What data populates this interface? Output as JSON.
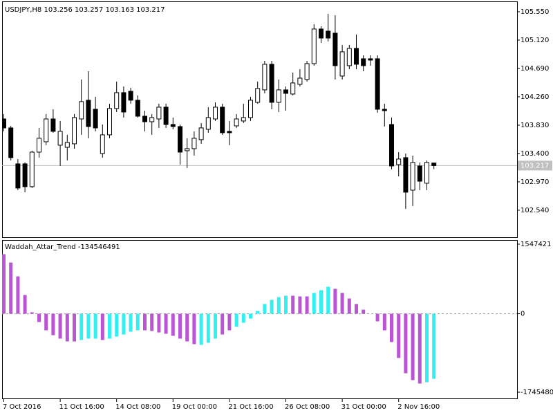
{
  "chart_data": [
    {
      "type": "candlestick",
      "title": "USDJPY,H8",
      "color": "#000000",
      "up_color": "#ffffff",
      "down_color": "#000000",
      "price_line_color": "#c0c0c0",
      "categories": [
        "7 Oct 2016",
        null,
        null,
        null,
        null,
        null,
        null,
        null,
        "11 Oct 16:00",
        null,
        null,
        null,
        null,
        null,
        null,
        null,
        "14 Oct 08:00",
        null,
        null,
        null,
        null,
        null,
        null,
        null,
        "19 Oct 00:00",
        null,
        null,
        null,
        null,
        null,
        null,
        null,
        "21 Oct 16:00",
        null,
        null,
        null,
        null,
        null,
        null,
        null,
        "26 Oct 08:00",
        null,
        null,
        null,
        null,
        null,
        null,
        null,
        "31 Oct 00:00",
        null,
        null,
        null,
        null,
        null,
        null,
        null,
        "2 Nov 16:00",
        null,
        null,
        null,
        null,
        null
      ],
      "open": [
        103.924,
        103.788,
        103.243,
        103.243,
        102.897,
        103.421,
        103.578,
        103.924,
        103.526,
        103.494,
        103.547,
        103.924,
        104.208,
        104.071,
        103.4,
        103.683,
        104.082,
        104.323,
        104.344,
        104.208,
        103.966,
        103.882,
        103.924,
        104.103,
        103.84,
        103.809,
        103.442,
        103.473,
        103.61,
        103.767,
        103.924,
        104.103,
        103.736,
        103.819,
        103.893,
        103.945,
        104.176,
        104.365,
        104.753,
        104.176,
        104.365,
        104.302,
        104.449,
        104.522,
        104.763,
        105.288,
        105.256,
        105.225,
        104.575,
        104.732,
        104.994,
        104.837,
        104.837,
        104.837,
        104.071,
        103.84,
        103.232,
        103.337,
        102.844,
        103.211,
        102.949,
        103.256
      ],
      "high": [
        103.998,
        103.819,
        103.316,
        103.264,
        103.442,
        103.788,
        103.998,
        104.071,
        103.893,
        103.683,
        103.998,
        104.522,
        104.648,
        104.26,
        103.84,
        104.155,
        104.491,
        104.417,
        104.396,
        104.281,
        104.05,
        103.998,
        104.155,
        104.155,
        103.945,
        103.84,
        103.631,
        103.736,
        103.861,
        104.103,
        104.176,
        104.155,
        103.893,
        103.998,
        104.155,
        104.26,
        104.491,
        104.805,
        104.805,
        104.522,
        104.417,
        104.627,
        104.679,
        104.805,
        105.361,
        105.33,
        105.519,
        105.498,
        105.047,
        105.047,
        105.204,
        104.889,
        104.889,
        104.889,
        104.155,
        103.945,
        103.421,
        103.4,
        103.368,
        103.264,
        103.295,
        103.257
      ],
      "low": [
        103.736,
        103.295,
        102.844,
        102.813,
        102.876,
        103.337,
        103.526,
        103.715,
        103.211,
        103.295,
        103.473,
        103.683,
        103.631,
        103.736,
        103.337,
        103.631,
        104.029,
        103.945,
        104.155,
        103.945,
        103.736,
        103.683,
        103.788,
        103.788,
        103.767,
        103.232,
        103.18,
        103.368,
        103.547,
        103.715,
        103.893,
        103.683,
        103.526,
        103.788,
        103.861,
        103.893,
        104.155,
        104.312,
        104.071,
        104.029,
        104.05,
        104.281,
        104.417,
        104.491,
        104.732,
        105.078,
        105.099,
        104.522,
        104.522,
        104.679,
        104.679,
        104.648,
        104.732,
        104.019,
        103.809,
        103.159,
        103.054,
        102.561,
        102.603,
        102.844,
        102.844,
        103.163
      ],
      "close": [
        103.788,
        103.337,
        102.876,
        102.897,
        103.421,
        103.631,
        103.924,
        103.736,
        103.736,
        103.568,
        103.945,
        104.187,
        103.809,
        103.788,
        103.683,
        104.082,
        104.323,
        104.029,
        104.208,
        103.966,
        103.882,
        103.945,
        104.103,
        103.84,
        103.809,
        103.421,
        103.473,
        103.631,
        103.788,
        103.945,
        104.103,
        103.715,
        103.715,
        103.924,
        103.945,
        104.208,
        104.386,
        104.753,
        104.176,
        104.365,
        104.312,
        104.47,
        104.543,
        104.763,
        105.288,
        105.151,
        105.151,
        104.732,
        104.942,
        104.994,
        104.753,
        104.732,
        104.816,
        104.071,
        104.05,
        103.211,
        103.316,
        102.813,
        103.264,
        102.98,
        103.264,
        103.217
      ],
      "ylim": [
        102.13,
        105.707
      ],
      "yticks": [
        {
          "value": 105.55,
          "label": "105.550"
        },
        {
          "value": 105.12,
          "label": "105.120"
        },
        {
          "value": 104.69,
          "label": "104.690"
        },
        {
          "value": 104.26,
          "label": "104.260"
        },
        {
          "value": 103.83,
          "label": "103.830"
        },
        {
          "value": 103.4,
          "label": "103.400"
        },
        {
          "value": 102.97,
          "label": "102.970"
        },
        {
          "value": 102.54,
          "label": "102.540"
        }
      ]
    },
    {
      "type": "bar",
      "title": "Waddah_Attar_Trend -134546491",
      "values": [
        1324000,
        1139000,
        831000,
        416000,
        31000,
        -185000,
        -369000,
        -477000,
        -554000,
        -616000,
        -616000,
        -585000,
        -554000,
        -554000,
        -585000,
        -554000,
        -508000,
        -462000,
        -400000,
        -369000,
        -369000,
        -385000,
        -416000,
        -446000,
        -492000,
        -554000,
        -616000,
        -677000,
        -693000,
        -646000,
        -554000,
        -462000,
        -369000,
        -292000,
        -200000,
        -108000,
        62000,
        215000,
        308000,
        369000,
        400000,
        400000,
        385000,
        385000,
        462000,
        523000,
        600000,
        554000,
        462000,
        339000,
        215000,
        92000,
        0,
        -169000,
        -369000,
        -631000,
        -985000,
        -1324000,
        -1477000,
        -1554000,
        -1524000,
        -1447000
      ],
      "colors": [
        "#ba55d3",
        "#ba55d3",
        "#ba55d3",
        "#ba55d3",
        "#ba55d3",
        "#ba55d3",
        "#ba55d3",
        "#ba55d3",
        "#ba55d3",
        "#ba55d3",
        "#ba55d3",
        "#33f0f0",
        "#33f0f0",
        "#33f0f0",
        "#ba55d3",
        "#33f0f0",
        "#33f0f0",
        "#33f0f0",
        "#33f0f0",
        "#33f0f0",
        "#ba55d3",
        "#ba55d3",
        "#ba55d3",
        "#ba55d3",
        "#ba55d3",
        "#ba55d3",
        "#ba55d3",
        "#ba55d3",
        "#33f0f0",
        "#33f0f0",
        "#33f0f0",
        "#ba55d3",
        "#ba55d3",
        "#33f0f0",
        "#33f0f0",
        "#33f0f0",
        "#33f0f0",
        "#33f0f0",
        "#33f0f0",
        "#33f0f0",
        "#33f0f0",
        "#ba55d3",
        "#ba55d3",
        "#ba55d3",
        "#33f0f0",
        "#33f0f0",
        "#33f0f0",
        "#ba55d3",
        "#ba55d3",
        "#ba55d3",
        "#ba55d3",
        "#ba55d3",
        "#ba55d3",
        "#ba55d3",
        "#ba55d3",
        "#ba55d3",
        "#ba55d3",
        "#ba55d3",
        "#ba55d3",
        "#ba55d3",
        "#33f0f0",
        "#33f0f0"
      ],
      "ylim": [
        -1745480,
        1547421
      ],
      "yticks": [
        -1745480,
        0,
        1547421
      ],
      "zero_line_color": "#a0a0a0"
    }
  ]
}
